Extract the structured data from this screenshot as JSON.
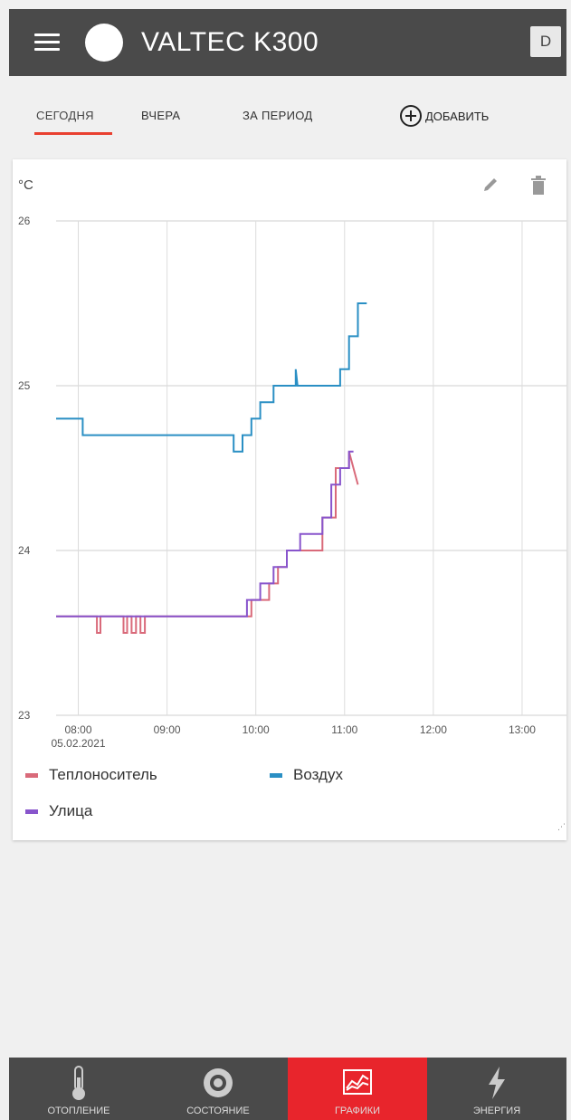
{
  "header": {
    "title": "VALTEC K300",
    "user_initial": "D"
  },
  "tabs": [
    {
      "label": "СЕГОДНЯ",
      "active": true
    },
    {
      "label": "ВЧЕРА",
      "active": false
    },
    {
      "label": "ЗА ПЕРИОД",
      "active": false
    }
  ],
  "add_label": "ДОБАВИТЬ",
  "accent_color": "#e8252c",
  "chart_data": {
    "type": "line",
    "title": "",
    "ylabel": "°C",
    "xlabel": "",
    "ylim": [
      23,
      26
    ],
    "yticks": [
      "26",
      "25",
      "24",
      "23"
    ],
    "xlim": [
      8,
      13.75
    ],
    "xticks": [
      {
        "value": 8.25,
        "label": "08:00",
        "sublabel": "05.02.2021"
      },
      {
        "value": 9.25,
        "label": "09:00"
      },
      {
        "value": 10.25,
        "label": "10:00"
      },
      {
        "value": 11.25,
        "label": "11:00"
      },
      {
        "value": 12.25,
        "label": "12:00"
      },
      {
        "value": 13.25,
        "label": "13:00"
      }
    ],
    "grid": true,
    "series": [
      {
        "name": "Теплоноситель",
        "color": "#d96a7a",
        "x": [
          8,
          8.46,
          8.46,
          8.5,
          8.5,
          8.76,
          8.76,
          8.8,
          8.8,
          8.85,
          8.85,
          8.9,
          8.9,
          8.95,
          8.95,
          9.0,
          9.0,
          10.2,
          10.2,
          10.4,
          10.4,
          10.5,
          10.5,
          10.6,
          10.6,
          11.0,
          11.0,
          11.15,
          11.15,
          11.3,
          11.3,
          11.4
        ],
        "y": [
          23.6,
          23.6,
          23.5,
          23.5,
          23.6,
          23.6,
          23.5,
          23.5,
          23.6,
          23.6,
          23.5,
          23.5,
          23.6,
          23.6,
          23.5,
          23.5,
          23.6,
          23.6,
          23.7,
          23.7,
          23.8,
          23.8,
          23.9,
          23.9,
          24.0,
          24.0,
          24.2,
          24.2,
          24.5,
          24.5,
          24.6,
          24.4
        ]
      },
      {
        "name": "Воздух",
        "color": "#2a8fc4",
        "x": [
          8,
          8.3,
          8.3,
          8.5,
          8.5,
          10.0,
          10.0,
          10.1,
          10.1,
          10.2,
          10.2,
          10.3,
          10.3,
          10.45,
          10.45,
          10.7,
          10.7,
          10.72,
          10.72,
          11.2,
          11.2,
          11.3,
          11.3,
          11.4,
          11.4,
          11.5
        ],
        "y": [
          24.8,
          24.8,
          24.7,
          24.7,
          24.7,
          24.7,
          24.6,
          24.6,
          24.7,
          24.7,
          24.8,
          24.8,
          24.9,
          24.9,
          25.0,
          25.0,
          25.1,
          25.0,
          25.0,
          25.0,
          25.1,
          25.1,
          25.3,
          25.3,
          25.5,
          25.5
        ]
      },
      {
        "name": "Улица",
        "color": "#8855cc",
        "x": [
          8,
          10.15,
          10.15,
          10.3,
          10.3,
          10.45,
          10.45,
          10.6,
          10.6,
          10.75,
          10.75,
          11.0,
          11.0,
          11.1,
          11.1,
          11.2,
          11.2,
          11.3,
          11.3,
          11.35
        ],
        "y": [
          23.6,
          23.6,
          23.7,
          23.7,
          23.8,
          23.8,
          23.9,
          23.9,
          24.0,
          24.0,
          24.1,
          24.1,
          24.2,
          24.2,
          24.4,
          24.4,
          24.5,
          24.5,
          24.6,
          24.6
        ]
      }
    ]
  },
  "bottom_nav": [
    {
      "label": "ОТОПЛЕНИЕ",
      "icon": "thermometer-icon",
      "active": false
    },
    {
      "label": "СОСТОЯНИЕ",
      "icon": "pump-icon",
      "active": false
    },
    {
      "label": "ГРАФИКИ",
      "icon": "chart-icon",
      "active": true
    },
    {
      "label": "ЭНЕРГИЯ",
      "icon": "lightning-icon",
      "active": false
    }
  ]
}
